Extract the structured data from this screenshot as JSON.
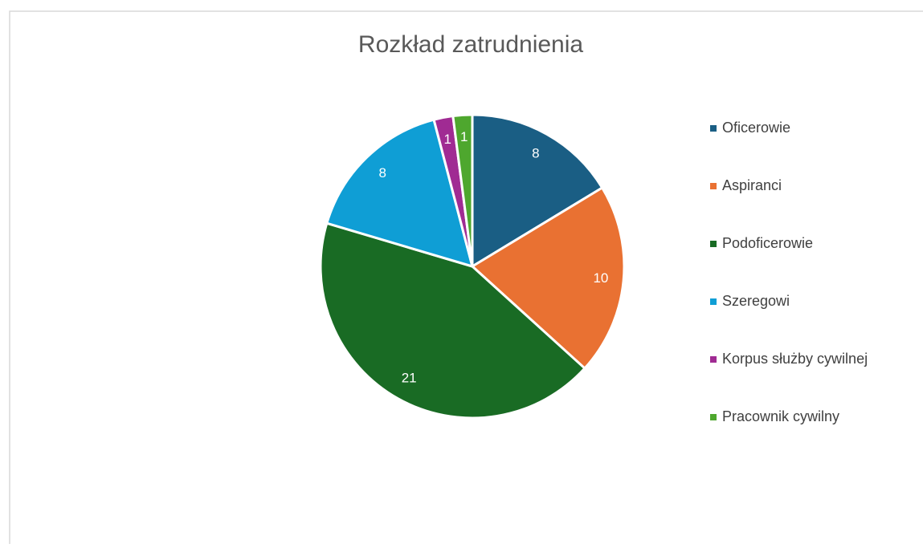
{
  "chart_data": {
    "type": "pie",
    "title": "Rozkład zatrudnienia",
    "categories": [
      "Oficerowie",
      "Aspiranci",
      "Podoficerowie",
      "Szeregowi",
      "Korpus służby cywilnej",
      "Pracownik cywilny"
    ],
    "values": [
      8,
      10,
      21,
      8,
      1,
      1
    ],
    "colors": [
      "#1a5e84",
      "#e97132",
      "#196b24",
      "#0f9ed5",
      "#a02b93",
      "#4ea72e"
    ],
    "legend": "right"
  }
}
